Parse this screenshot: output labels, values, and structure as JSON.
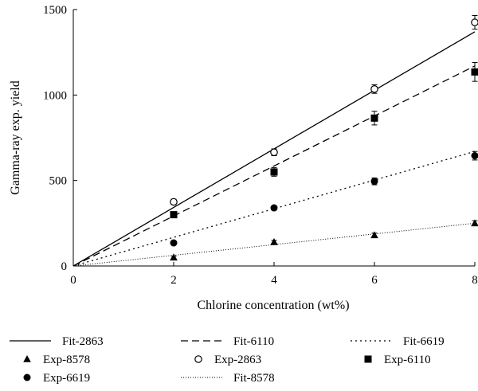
{
  "chart_data": {
    "type": "scatter",
    "xlabel": "Chlorine concentration (wt%)",
    "ylabel": "Gamma-ray exp. yield",
    "xlim": [
      0,
      8
    ],
    "ylim": [
      0,
      1500
    ],
    "xticks": [
      0,
      2,
      4,
      6,
      8
    ],
    "yticks": [
      0,
      500,
      1000,
      1500
    ],
    "grid": false,
    "legend_position": "bottom",
    "fits": [
      {
        "name": "Fit-2863",
        "style": "solid",
        "x": [
          0,
          8
        ],
        "y": [
          0,
          1370
        ]
      },
      {
        "name": "Fit-6110",
        "style": "dashed",
        "x": [
          0,
          8
        ],
        "y": [
          0,
          1170
        ]
      },
      {
        "name": "Fit-6619",
        "style": "dotted",
        "x": [
          0,
          8
        ],
        "y": [
          0,
          670
        ]
      },
      {
        "name": "Fit-8578",
        "style": "fine-dotted",
        "x": [
          0,
          8
        ],
        "y": [
          0,
          250
        ]
      }
    ],
    "experiments": [
      {
        "name": "Exp-8578",
        "marker": "triangle-filled",
        "x": [
          2,
          4,
          6,
          8
        ],
        "y": [
          50,
          140,
          180,
          250
        ],
        "err": [
          8,
          10,
          12,
          15
        ]
      },
      {
        "name": "Exp-2863",
        "marker": "circle-open",
        "x": [
          2,
          4,
          6,
          8
        ],
        "y": [
          375,
          665,
          1035,
          1425
        ],
        "err": [
          15,
          20,
          25,
          40
        ]
      },
      {
        "name": "Exp-6110",
        "marker": "square-filled",
        "x": [
          2,
          4,
          6,
          8
        ],
        "y": [
          300,
          550,
          865,
          1135
        ],
        "err": [
          10,
          25,
          40,
          55
        ]
      },
      {
        "name": "Exp-6619",
        "marker": "circle-filled",
        "x": [
          2,
          4,
          6,
          8
        ],
        "y": [
          135,
          340,
          495,
          645
        ],
        "err": [
          8,
          12,
          20,
          25
        ]
      }
    ],
    "legend": [
      {
        "label": "Fit-2863",
        "kind": "line",
        "style": "solid"
      },
      {
        "label": "Exp-8578",
        "kind": "marker",
        "marker": "triangle-filled"
      },
      {
        "label": "Exp-6619",
        "kind": "marker",
        "marker": "circle-filled"
      },
      {
        "label": "Fit-6110",
        "kind": "line",
        "style": "dashed"
      },
      {
        "label": "Exp-2863",
        "kind": "marker",
        "marker": "circle-open"
      },
      {
        "label": "Fit-8578",
        "kind": "line",
        "style": "fine-dotted"
      },
      {
        "label": "Fit-6619",
        "kind": "line",
        "style": "dotted"
      },
      {
        "label": "Exp-6110",
        "kind": "marker",
        "marker": "square-filled"
      }
    ]
  }
}
